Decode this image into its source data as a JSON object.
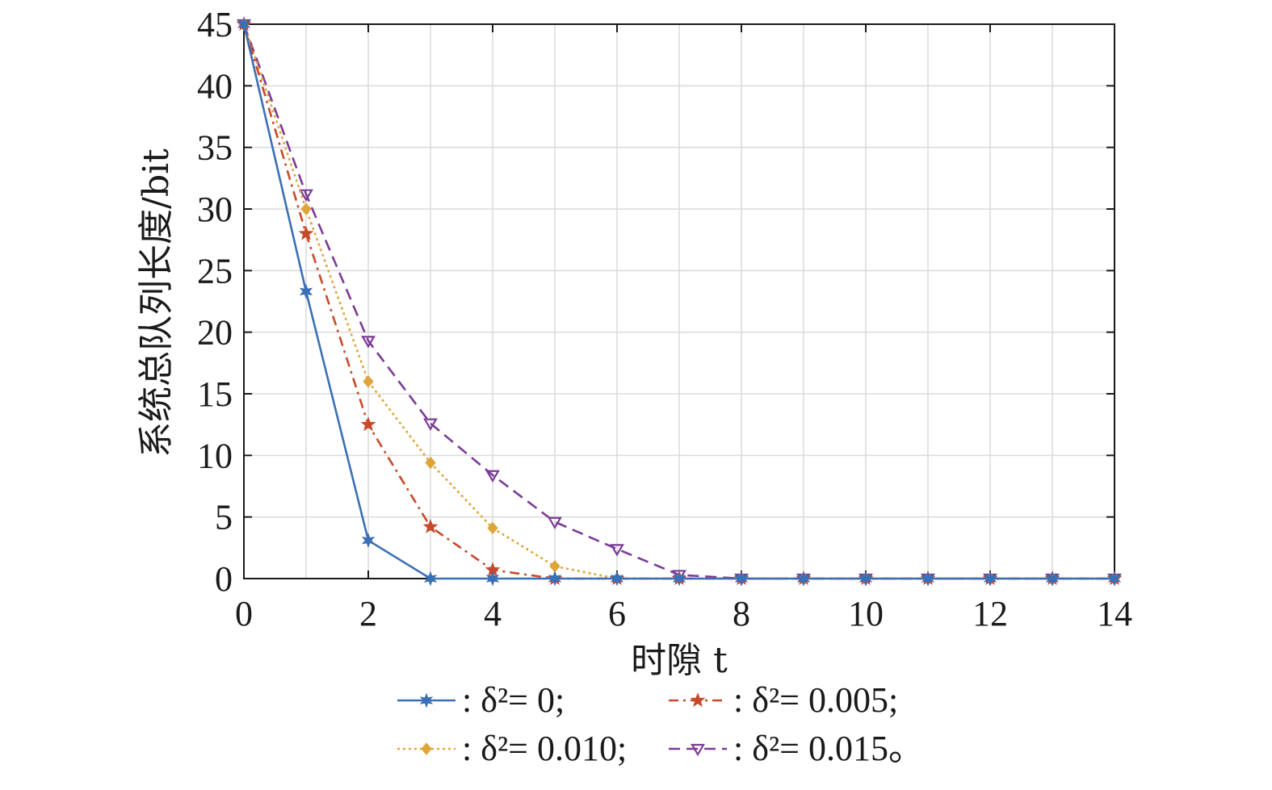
{
  "chart_data": {
    "type": "line",
    "title": "",
    "xlabel": "时隙 t",
    "ylabel": "系统总队列长度/bit",
    "xlim": [
      0,
      14
    ],
    "ylim": [
      0,
      45
    ],
    "x_ticks": [
      "0",
      "2",
      "4",
      "6",
      "8",
      "10",
      "12",
      "14"
    ],
    "y_ticks": [
      "0",
      "5",
      "10",
      "15",
      "20",
      "25",
      "30",
      "35",
      "40",
      "45"
    ],
    "grid": true,
    "legend_position": "bottom",
    "x": [
      0,
      1,
      2,
      3,
      4,
      5,
      6,
      7,
      8,
      9,
      10,
      11,
      12,
      13,
      14
    ],
    "series": [
      {
        "name": ": δ²= 0;",
        "color": "#3b6fb6",
        "line_style": "solid",
        "marker": "star6",
        "x": [
          0,
          1,
          2,
          3,
          4,
          5,
          6,
          7,
          8,
          9,
          10,
          11,
          12,
          13,
          14
        ],
        "values": [
          45,
          23.3,
          3.1,
          0,
          0,
          0,
          0,
          0,
          0,
          0,
          0,
          0,
          0,
          0,
          0
        ]
      },
      {
        "name": ": δ²= 0.005;",
        "color": "#c8492a",
        "line_style": "dashdot",
        "marker": "star5",
        "x": [
          0,
          1,
          2,
          3,
          4,
          5,
          6,
          7,
          8,
          9,
          10,
          11,
          12,
          13,
          14
        ],
        "values": [
          45,
          28,
          12.5,
          4.2,
          0.7,
          0,
          0,
          0,
          0,
          0,
          0,
          0,
          0,
          0,
          0
        ]
      },
      {
        "name": ": δ²= 0.010;",
        "color": "#e0a53a",
        "line_style": "dotted",
        "marker": "diamond",
        "x": [
          0,
          1,
          2,
          3,
          4,
          5,
          6,
          7,
          8,
          9,
          10,
          11,
          12,
          13,
          14
        ],
        "values": [
          45,
          30,
          16,
          9.4,
          4.1,
          1,
          0,
          0,
          0,
          0,
          0,
          0,
          0,
          0,
          0
        ]
      },
      {
        "name": ": δ²= 0.015。",
        "color": "#7b3a96",
        "line_style": "dashed",
        "marker": "triangle-down",
        "x": [
          0,
          1,
          2,
          3,
          4,
          5,
          6,
          7,
          8,
          9,
          10,
          11,
          12,
          13,
          14
        ],
        "values": [
          45,
          31.2,
          19.3,
          12.6,
          8.4,
          4.6,
          2.4,
          0.3,
          0,
          0,
          0,
          0,
          0,
          0,
          0
        ]
      }
    ]
  }
}
